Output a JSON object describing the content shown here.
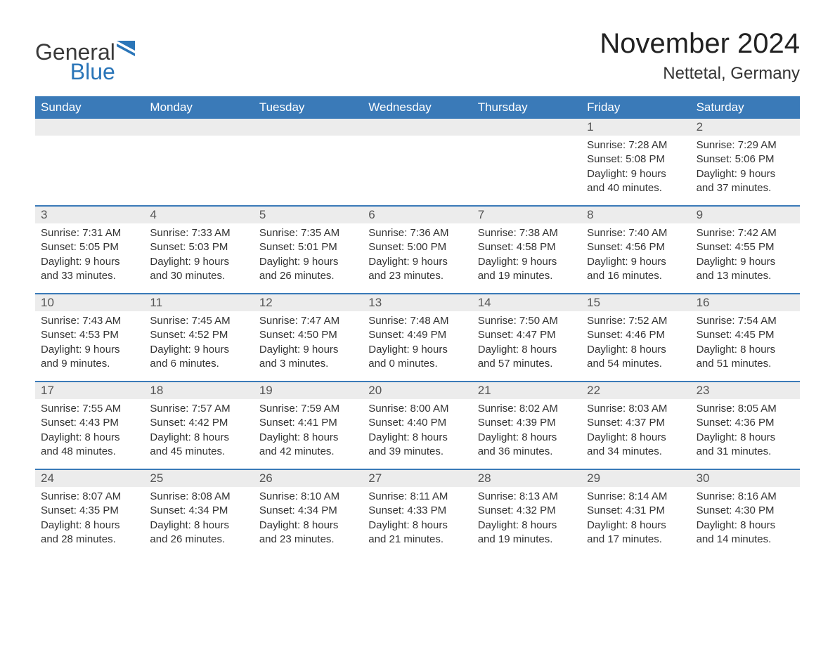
{
  "logo": {
    "text_general": "General",
    "text_blue": "Blue",
    "flag_color": "#2a75b8"
  },
  "header": {
    "month_title": "November 2024",
    "location": "Nettetal, Germany"
  },
  "colors": {
    "header_bg": "#3a7ab8",
    "header_text": "#ffffff",
    "row_border": "#3a7ab8",
    "daybar_bg": "#ececec",
    "text": "#333333",
    "logo_blue": "#2a75b8"
  },
  "weekdays": [
    "Sunday",
    "Monday",
    "Tuesday",
    "Wednesday",
    "Thursday",
    "Friday",
    "Saturday"
  ],
  "labels": {
    "sunrise": "Sunrise:",
    "sunset": "Sunset:",
    "daylight": "Daylight:"
  },
  "weeks": [
    [
      {
        "day": "",
        "sunrise": "",
        "sunset": "",
        "daylight": ""
      },
      {
        "day": "",
        "sunrise": "",
        "sunset": "",
        "daylight": ""
      },
      {
        "day": "",
        "sunrise": "",
        "sunset": "",
        "daylight": ""
      },
      {
        "day": "",
        "sunrise": "",
        "sunset": "",
        "daylight": ""
      },
      {
        "day": "",
        "sunrise": "",
        "sunset": "",
        "daylight": ""
      },
      {
        "day": "1",
        "sunrise": "7:28 AM",
        "sunset": "5:08 PM",
        "daylight": "9 hours and 40 minutes."
      },
      {
        "day": "2",
        "sunrise": "7:29 AM",
        "sunset": "5:06 PM",
        "daylight": "9 hours and 37 minutes."
      }
    ],
    [
      {
        "day": "3",
        "sunrise": "7:31 AM",
        "sunset": "5:05 PM",
        "daylight": "9 hours and 33 minutes."
      },
      {
        "day": "4",
        "sunrise": "7:33 AM",
        "sunset": "5:03 PM",
        "daylight": "9 hours and 30 minutes."
      },
      {
        "day": "5",
        "sunrise": "7:35 AM",
        "sunset": "5:01 PM",
        "daylight": "9 hours and 26 minutes."
      },
      {
        "day": "6",
        "sunrise": "7:36 AM",
        "sunset": "5:00 PM",
        "daylight": "9 hours and 23 minutes."
      },
      {
        "day": "7",
        "sunrise": "7:38 AM",
        "sunset": "4:58 PM",
        "daylight": "9 hours and 19 minutes."
      },
      {
        "day": "8",
        "sunrise": "7:40 AM",
        "sunset": "4:56 PM",
        "daylight": "9 hours and 16 minutes."
      },
      {
        "day": "9",
        "sunrise": "7:42 AM",
        "sunset": "4:55 PM",
        "daylight": "9 hours and 13 minutes."
      }
    ],
    [
      {
        "day": "10",
        "sunrise": "7:43 AM",
        "sunset": "4:53 PM",
        "daylight": "9 hours and 9 minutes."
      },
      {
        "day": "11",
        "sunrise": "7:45 AM",
        "sunset": "4:52 PM",
        "daylight": "9 hours and 6 minutes."
      },
      {
        "day": "12",
        "sunrise": "7:47 AM",
        "sunset": "4:50 PM",
        "daylight": "9 hours and 3 minutes."
      },
      {
        "day": "13",
        "sunrise": "7:48 AM",
        "sunset": "4:49 PM",
        "daylight": "9 hours and 0 minutes."
      },
      {
        "day": "14",
        "sunrise": "7:50 AM",
        "sunset": "4:47 PM",
        "daylight": "8 hours and 57 minutes."
      },
      {
        "day": "15",
        "sunrise": "7:52 AM",
        "sunset": "4:46 PM",
        "daylight": "8 hours and 54 minutes."
      },
      {
        "day": "16",
        "sunrise": "7:54 AM",
        "sunset": "4:45 PM",
        "daylight": "8 hours and 51 minutes."
      }
    ],
    [
      {
        "day": "17",
        "sunrise": "7:55 AM",
        "sunset": "4:43 PM",
        "daylight": "8 hours and 48 minutes."
      },
      {
        "day": "18",
        "sunrise": "7:57 AM",
        "sunset": "4:42 PM",
        "daylight": "8 hours and 45 minutes."
      },
      {
        "day": "19",
        "sunrise": "7:59 AM",
        "sunset": "4:41 PM",
        "daylight": "8 hours and 42 minutes."
      },
      {
        "day": "20",
        "sunrise": "8:00 AM",
        "sunset": "4:40 PM",
        "daylight": "8 hours and 39 minutes."
      },
      {
        "day": "21",
        "sunrise": "8:02 AM",
        "sunset": "4:39 PM",
        "daylight": "8 hours and 36 minutes."
      },
      {
        "day": "22",
        "sunrise": "8:03 AM",
        "sunset": "4:37 PM",
        "daylight": "8 hours and 34 minutes."
      },
      {
        "day": "23",
        "sunrise": "8:05 AM",
        "sunset": "4:36 PM",
        "daylight": "8 hours and 31 minutes."
      }
    ],
    [
      {
        "day": "24",
        "sunrise": "8:07 AM",
        "sunset": "4:35 PM",
        "daylight": "8 hours and 28 minutes."
      },
      {
        "day": "25",
        "sunrise": "8:08 AM",
        "sunset": "4:34 PM",
        "daylight": "8 hours and 26 minutes."
      },
      {
        "day": "26",
        "sunrise": "8:10 AM",
        "sunset": "4:34 PM",
        "daylight": "8 hours and 23 minutes."
      },
      {
        "day": "27",
        "sunrise": "8:11 AM",
        "sunset": "4:33 PM",
        "daylight": "8 hours and 21 minutes."
      },
      {
        "day": "28",
        "sunrise": "8:13 AM",
        "sunset": "4:32 PM",
        "daylight": "8 hours and 19 minutes."
      },
      {
        "day": "29",
        "sunrise": "8:14 AM",
        "sunset": "4:31 PM",
        "daylight": "8 hours and 17 minutes."
      },
      {
        "day": "30",
        "sunrise": "8:16 AM",
        "sunset": "4:30 PM",
        "daylight": "8 hours and 14 minutes."
      }
    ]
  ]
}
